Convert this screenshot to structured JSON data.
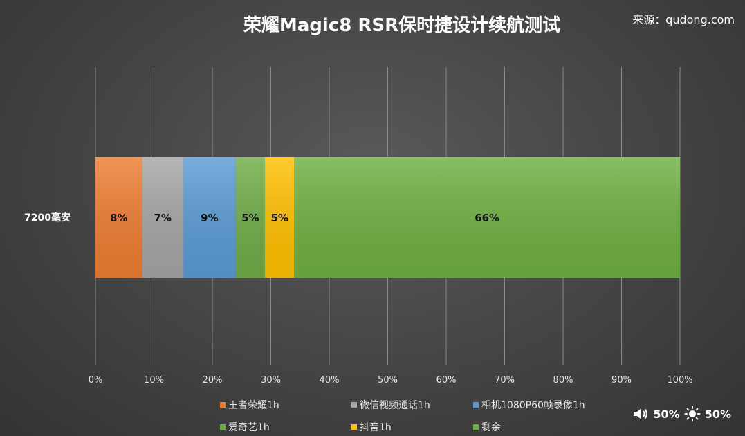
{
  "title": "荣耀Magic8 RSR保时捷设计续航测试",
  "source": "来源：qudong.com",
  "status": {
    "volume_icon": "speaker-icon",
    "volume": "50%",
    "brightness_icon": "sun-icon",
    "brightness": "50%"
  },
  "chart_data": {
    "type": "bar",
    "orientation": "horizontal",
    "stacked": true,
    "percent_stacked": true,
    "categories": [
      "7200毫安"
    ],
    "series": [
      {
        "name": "王者荣耀1h",
        "values": [
          8
        ],
        "label": "8%",
        "color": "#ed7d31"
      },
      {
        "name": "微信视频通话1h",
        "values": [
          7
        ],
        "label": "7%",
        "color": "#a5a5a5"
      },
      {
        "name": "相机1080P60帧录像1h",
        "values": [
          9
        ],
        "label": "9%",
        "color": "#5b9bd5"
      },
      {
        "name": "爱奇艺1h",
        "values": [
          5
        ],
        "label": "5%",
        "color": "#70ad47"
      },
      {
        "name": "抖音1h",
        "values": [
          5
        ],
        "label": "5%",
        "color": "#ffc000"
      },
      {
        "name": "剩余",
        "values": [
          66
        ],
        "label": "66%",
        "color": "#6fb041"
      }
    ],
    "xlim": [
      0,
      100
    ],
    "xticks": [
      "0%",
      "10%",
      "20%",
      "30%",
      "40%",
      "50%",
      "60%",
      "70%",
      "80%",
      "90%",
      "100%"
    ],
    "grid": true,
    "legend": "bottom"
  }
}
